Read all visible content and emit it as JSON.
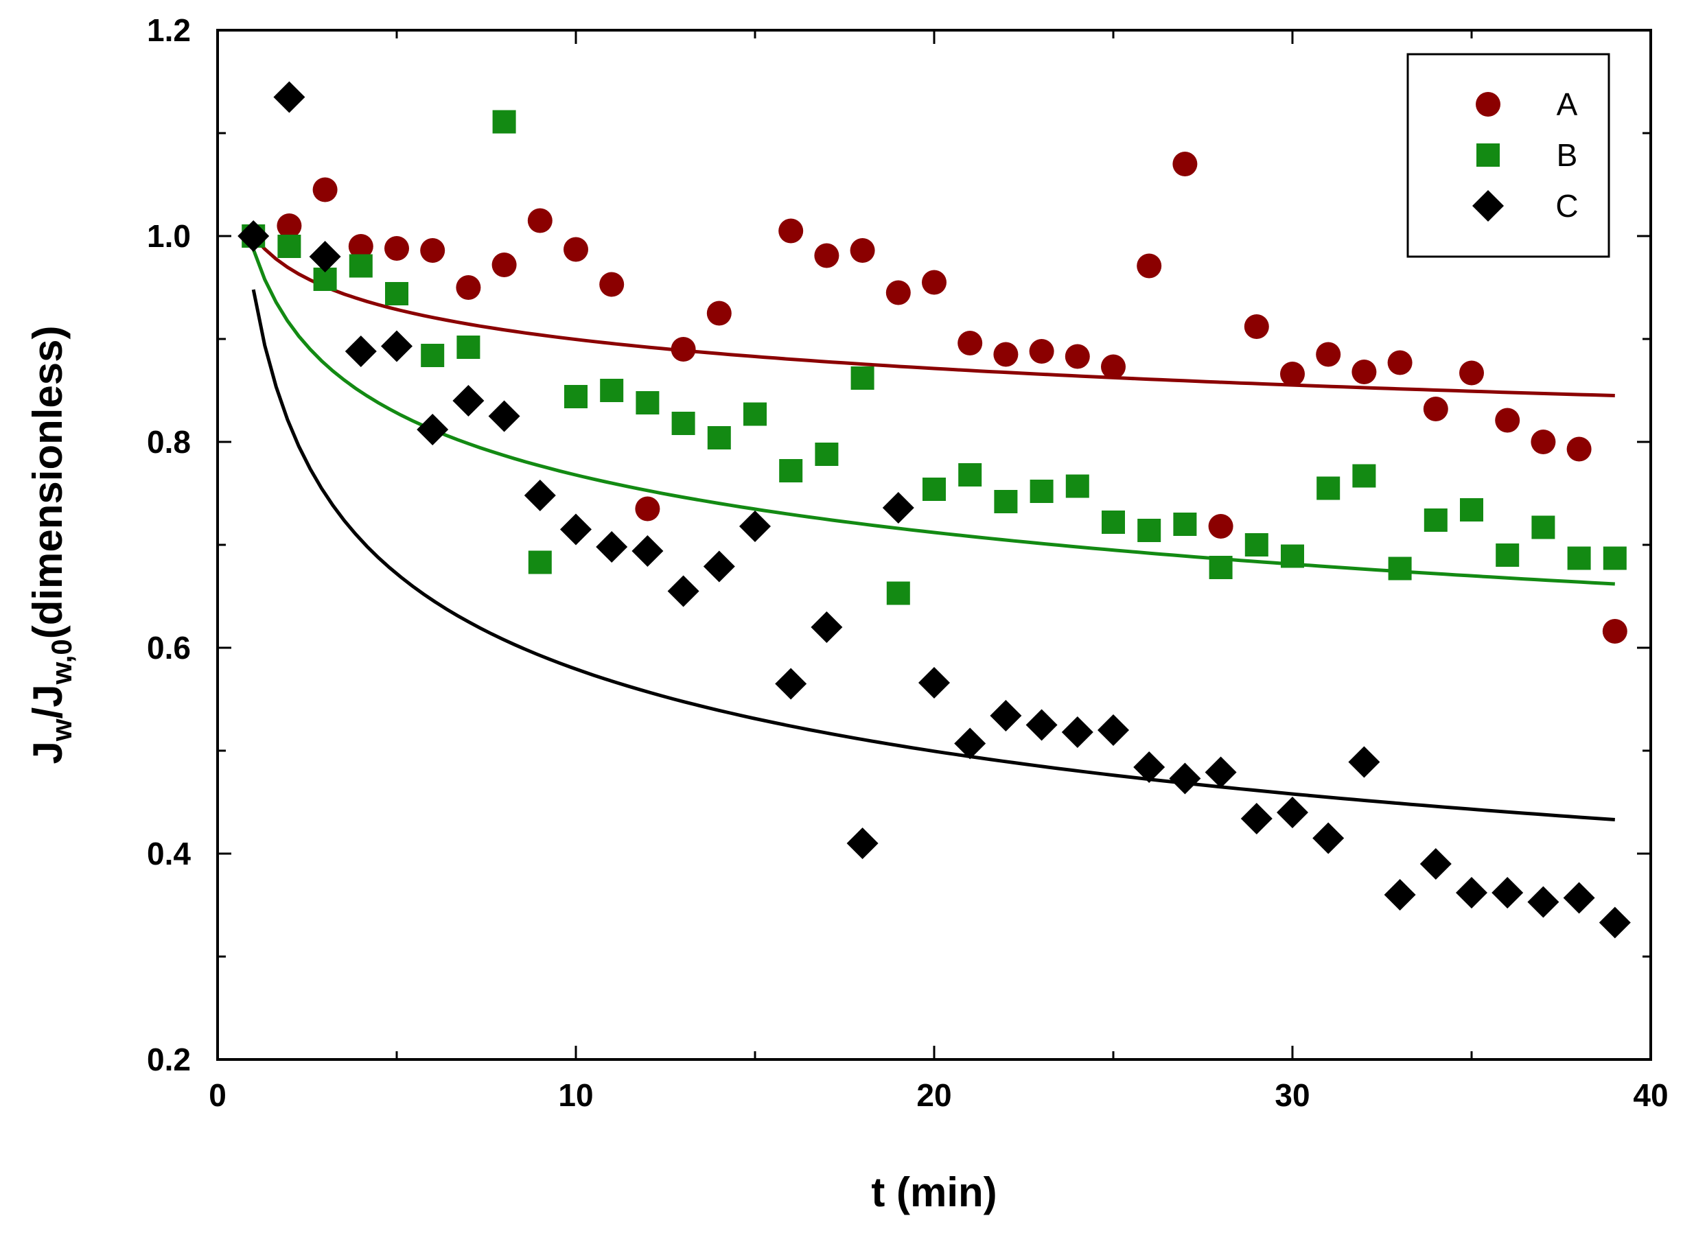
{
  "chart_data": {
    "type": "scatter",
    "title": "",
    "xlabel": "t (min)",
    "ylabel": {
      "main1": "J",
      "sub1": "w",
      "main2": "/J",
      "sub2": "w,0",
      "main3": "(dimensionless)"
    },
    "xlim": [
      0,
      40
    ],
    "ylim": [
      0.2,
      1.2
    ],
    "xticks": [
      0,
      10,
      20,
      30,
      40
    ],
    "xtick_labels": [
      "0",
      "10",
      "20",
      "30",
      "40"
    ],
    "yticks": [
      0.2,
      0.4,
      0.6,
      0.8,
      1.0,
      1.2
    ],
    "ytick_labels": [
      "0.2",
      "0.4",
      "0.6",
      "0.8",
      "1.0",
      "1.2"
    ],
    "grid": false,
    "legend_position": "top-right",
    "series": [
      {
        "name": "A",
        "marker": "circle",
        "color": "#8b0000",
        "x": [
          1,
          2,
          3,
          4,
          5,
          6,
          7,
          8,
          9,
          10,
          11,
          12,
          13,
          14,
          16,
          17,
          18,
          19,
          20,
          21,
          22,
          23,
          24,
          25,
          26,
          27,
          28,
          29,
          30,
          31,
          32,
          33,
          34,
          35,
          36,
          37,
          38,
          39
        ],
        "y": [
          1.0,
          1.01,
          1.045,
          0.99,
          0.988,
          0.986,
          0.95,
          0.972,
          1.015,
          0.987,
          0.953,
          0.735,
          0.89,
          0.925,
          1.005,
          0.981,
          0.986,
          0.945,
          0.955,
          0.896,
          0.885,
          0.888,
          0.883,
          0.873,
          0.971,
          1.07,
          0.718,
          0.912,
          0.866,
          0.885,
          0.868,
          0.877,
          0.832,
          0.867,
          0.821,
          0.8,
          0.793,
          0.616
        ],
        "fit": {
          "x_start": 1,
          "x_end": 39,
          "y_start": 1.0,
          "y_end": 0.845
        }
      },
      {
        "name": "B",
        "marker": "square",
        "color": "#138a13",
        "x": [
          1,
          2,
          3,
          4,
          5,
          6,
          7,
          8,
          9,
          10,
          11,
          12,
          13,
          14,
          15,
          16,
          17,
          18,
          19,
          20,
          21,
          22,
          23,
          24,
          25,
          26,
          27,
          28,
          29,
          30,
          31,
          32,
          33,
          34,
          35,
          36,
          37,
          38,
          39
        ],
        "y": [
          1.0,
          0.99,
          0.958,
          0.971,
          0.944,
          0.884,
          0.892,
          1.111,
          0.683,
          0.844,
          0.85,
          0.838,
          0.818,
          0.804,
          0.827,
          0.772,
          0.788,
          0.862,
          0.653,
          0.754,
          0.768,
          0.742,
          0.752,
          0.757,
          0.722,
          0.714,
          0.72,
          0.678,
          0.7,
          0.689,
          0.755,
          0.767,
          0.677,
          0.724,
          0.734,
          0.69,
          0.717,
          0.687,
          0.687
        ],
        "fit": {
          "x_start": 1,
          "x_end": 39,
          "y_start": 0.987,
          "y_end": 0.662
        }
      },
      {
        "name": "C",
        "marker": "diamond",
        "color": "#000000",
        "x": [
          1,
          2,
          3,
          4,
          5,
          6,
          7,
          8,
          9,
          10,
          11,
          12,
          13,
          14,
          15,
          16,
          17,
          18,
          19,
          20,
          21,
          22,
          23,
          24,
          25,
          26,
          27,
          28,
          29,
          30,
          31,
          32,
          33,
          34,
          35,
          36,
          37,
          38,
          39
        ],
        "y": [
          1.0,
          1.135,
          0.98,
          0.888,
          0.893,
          0.812,
          0.84,
          0.825,
          0.748,
          0.715,
          0.698,
          0.694,
          0.655,
          0.679,
          0.718,
          0.565,
          0.62,
          0.41,
          0.736,
          0.566,
          0.507,
          0.534,
          0.525,
          0.518,
          0.52,
          0.484,
          0.473,
          0.479,
          0.434,
          0.44,
          0.415,
          0.489,
          0.36,
          0.39,
          0.362,
          0.362,
          0.353,
          0.357,
          0.333
        ],
        "fit": {
          "x_start": 1,
          "x_end": 39,
          "y_start": 0.948,
          "y_end": 0.433
        }
      }
    ]
  }
}
